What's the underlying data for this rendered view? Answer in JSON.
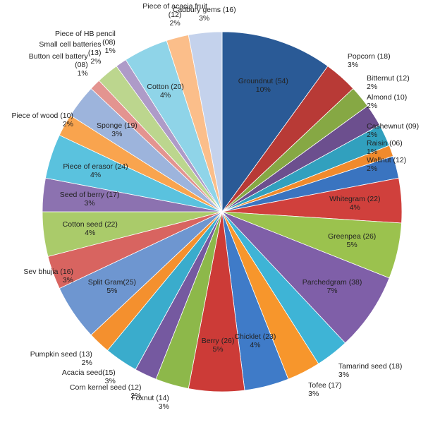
{
  "chart_data": {
    "type": "pie",
    "categories": [
      "Groundnut (54)",
      "Popcorn (18)",
      "Bitternut (12)",
      "Almond (10)",
      "Cashewnut (09)",
      "Raisin (06)",
      "Wallnut (12)",
      "Whitegram (22)",
      "Greenpea (26)",
      "Parchedgram (38)",
      "Tamarind seed (18)",
      "Tofee (17)",
      "Chicklet (23)",
      "Berry (26)",
      "Foxnut (14)",
      "Corn kernel seed (12)",
      "Acacia seed(15)",
      "Pumpkin seed (13)",
      "Split Gram(25)",
      "Sev bhujia (16)",
      "Cotton seed (22)",
      "Seed of berry (17)",
      "Piece of erasor (24)",
      "Piece of wood (10)",
      "Sponge (19)",
      "Button cell battery (08)",
      "Small cell batteries (13)",
      "Piece of HB pencil (08)",
      "Cotton (20)",
      "Piece of acacia fruit (12)",
      "Cadbury gems (16)"
    ],
    "values": [
      10,
      3,
      2,
      2,
      2,
      1,
      2,
      4,
      5,
      7,
      3,
      3,
      4,
      5,
      3,
      2,
      3,
      2,
      5,
      3,
      4,
      3,
      4,
      2,
      3,
      1,
      2,
      1,
      4,
      2,
      3
    ],
    "value_labels": [
      "10%",
      "3%",
      "2%",
      "2%",
      "2%",
      "1%",
      "2%",
      "4%",
      "5%",
      "7%",
      "3%",
      "3%",
      "4%",
      "5%",
      "3%",
      "2%",
      "3%",
      "2%",
      "5%",
      "3%",
      "4%",
      "3%",
      "4%",
      "2%",
      "3%",
      "1%",
      "2%",
      "1%",
      "4%",
      "2%",
      "3%"
    ],
    "colors": [
      "#2a5a96",
      "#b83a36",
      "#86a844",
      "#6c4f8e",
      "#31a0be",
      "#f08a2c",
      "#3a74c0",
      "#d0403c",
      "#9bc24e",
      "#7f5fa8",
      "#3eb4d6",
      "#f7962c",
      "#3f7bc8",
      "#cc3b37",
      "#8db84a",
      "#7559a0",
      "#3aaccc",
      "#f4902e",
      "#6e96d0",
      "#d86460",
      "#aacb6a",
      "#8c72b0",
      "#5ac2de",
      "#f9a44e",
      "#9db4dc",
      "#e39490",
      "#bcd68e",
      "#ae9bc8",
      "#8fd4e8",
      "#fbbe8a",
      "#c4d2ec"
    ]
  }
}
